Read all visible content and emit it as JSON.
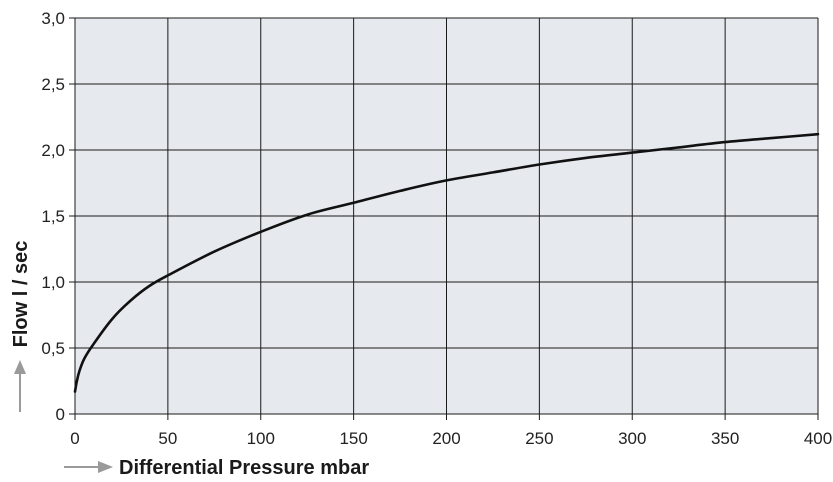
{
  "chart_data": {
    "type": "line",
    "title": "",
    "xlabel": "Differential Pressure mbar",
    "ylabel": "Flow l / sec",
    "xlim": [
      0,
      400
    ],
    "ylim": [
      0,
      3.0
    ],
    "x_ticks": [
      0,
      50,
      100,
      150,
      200,
      250,
      300,
      350,
      400
    ],
    "x_tick_labels": [
      "0",
      "50",
      "100",
      "150",
      "200",
      "250",
      "300",
      "350",
      "400"
    ],
    "y_ticks": [
      0,
      0.5,
      1.0,
      1.5,
      2.0,
      2.5,
      3.0
    ],
    "y_tick_labels": [
      "0",
      "0,5",
      "1,0",
      "1,5",
      "2,0",
      "2,5",
      "3,0"
    ],
    "grid": true,
    "legend": "none",
    "series": [
      {
        "x": [
          0,
          1,
          2.5,
          5,
          10,
          20,
          30,
          40,
          50,
          75,
          100,
          125,
          150,
          175,
          200,
          225,
          250,
          275,
          300,
          325,
          350,
          375,
          400
        ],
        "y": [
          0.17,
          0.25,
          0.33,
          0.42,
          0.53,
          0.72,
          0.86,
          0.97,
          1.05,
          1.23,
          1.38,
          1.51,
          1.6,
          1.69,
          1.77,
          1.83,
          1.89,
          1.94,
          1.98,
          2.02,
          2.06,
          2.09,
          2.12
        ]
      }
    ],
    "colors": {
      "plot_background": "#e6e9ee",
      "grid": "#1a1a1a",
      "line": "#111111",
      "arrow": "#9a9a9a"
    }
  }
}
